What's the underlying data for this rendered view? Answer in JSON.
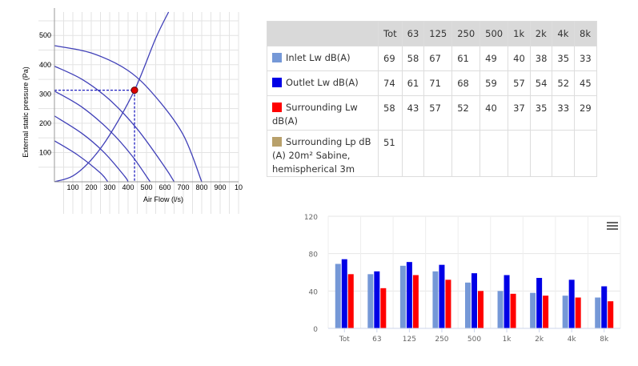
{
  "fan_curve": {
    "chart_data": {
      "type": "line",
      "xlabel": "Air Flow (l/s)",
      "ylabel": "External static pressure (Pa)",
      "xlim": [
        0,
        1000
      ],
      "ylim": [
        0,
        580
      ],
      "x_ticks": [
        "100",
        "200",
        "300",
        "400",
        "500",
        "600",
        "700",
        "800",
        "900",
        "10"
      ],
      "y_ticks": [
        "100",
        "200",
        "300",
        "400",
        "500"
      ],
      "grid": true,
      "series": [
        {
          "points": [
            [
              0,
              465
            ],
            [
              200,
              440
            ],
            [
              400,
              380
            ],
            [
              550,
              290
            ],
            [
              700,
              160
            ],
            [
              800,
              0
            ]
          ]
        },
        {
          "points": [
            [
              0,
              395
            ],
            [
              150,
              350
            ],
            [
              300,
              280
            ],
            [
              450,
              180
            ],
            [
              600,
              50
            ],
            [
              650,
              0
            ]
          ]
        },
        {
          "points": [
            [
              0,
              310
            ],
            [
              150,
              255
            ],
            [
              300,
              175
            ],
            [
              420,
              90
            ],
            [
              520,
              0
            ]
          ]
        },
        {
          "points": [
            [
              0,
              225
            ],
            [
              150,
              165
            ],
            [
              270,
              100
            ],
            [
              380,
              20
            ],
            [
              400,
              0
            ]
          ]
        },
        {
          "points": [
            [
              0,
              140
            ],
            [
              130,
              90
            ],
            [
              250,
              30
            ],
            [
              290,
              0
            ]
          ]
        }
      ],
      "system_curve": {
        "points": [
          [
            0,
            0
          ],
          [
            100,
            20
          ],
          [
            200,
            75
          ],
          [
            300,
            160
          ],
          [
            435,
            313
          ],
          [
            550,
            490
          ],
          [
            620,
            580
          ]
        ]
      },
      "operating_point": {
        "x": 435,
        "y": 313
      }
    }
  },
  "table": {
    "headers": [
      "",
      "Tot",
      "63",
      "125",
      "250",
      "500",
      "1k",
      "2k",
      "4k",
      "8k"
    ],
    "rows": [
      {
        "label": "Inlet Lw dB(A)",
        "color": "#7598d7",
        "values": [
          "69",
          "58",
          "67",
          "61",
          "49",
          "40",
          "38",
          "35",
          "33"
        ]
      },
      {
        "label": "Outlet Lw dB(A)",
        "color": "#0000e6",
        "values": [
          "74",
          "61",
          "71",
          "68",
          "59",
          "57",
          "54",
          "52",
          "45"
        ]
      },
      {
        "label": "Surrounding Lw dB(A)",
        "color": "#ff0000",
        "values": [
          "58",
          "43",
          "57",
          "52",
          "40",
          "37",
          "35",
          "33",
          "29"
        ]
      },
      {
        "label": "Surrounding Lp dB (A) 20m² Sabine, hemispherical 3m",
        "color": "#b8a06a",
        "values": [
          "51",
          "",
          "",
          "",
          "",
          "",
          "",
          "",
          ""
        ]
      }
    ]
  },
  "bar_chart": {
    "chart_data": {
      "type": "bar",
      "categories": [
        "Tot",
        "63",
        "125",
        "250",
        "500",
        "1k",
        "2k",
        "4k",
        "8k"
      ],
      "ylim": [
        0,
        120
      ],
      "y_ticks": [
        "0",
        "40",
        "80",
        "120"
      ],
      "grid": true,
      "series": [
        {
          "name": "Inlet Lw dB(A)",
          "color": "#7598d7",
          "values": [
            69,
            58,
            67,
            61,
            49,
            40,
            38,
            35,
            33
          ]
        },
        {
          "name": "Outlet Lw dB(A)",
          "color": "#0000e6",
          "values": [
            74,
            61,
            71,
            68,
            59,
            57,
            54,
            52,
            45
          ]
        },
        {
          "name": "Surrounding Lw dB(A)",
          "color": "#ff0000",
          "values": [
            58,
            43,
            57,
            52,
            40,
            37,
            35,
            33,
            29
          ]
        }
      ]
    },
    "menu_icon": "hamburger-menu-icon"
  }
}
